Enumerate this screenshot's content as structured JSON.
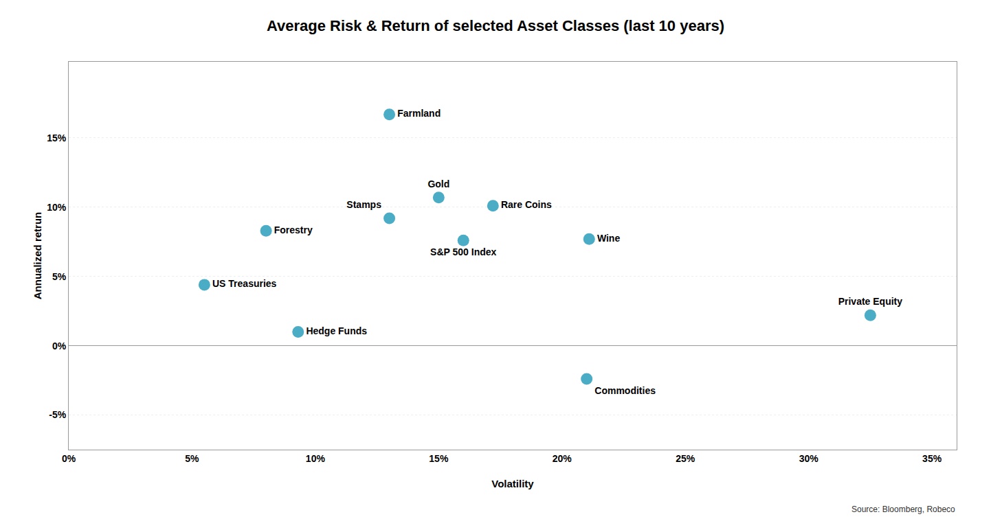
{
  "chart_data": {
    "type": "scatter",
    "title": "Average Risk & Return of selected Asset Classes (last 10 years)",
    "xlabel": "Volatility",
    "ylabel": "Annualized retrun",
    "labels": [
      "Farmland",
      "Forestry",
      "Gold",
      "Stamps",
      "Rare Coins",
      "S&P 500 Index",
      "Wine",
      "US Treasuries",
      "Hedge Funds",
      "Private Equity",
      "Commodities"
    ],
    "x": [
      0.13,
      0.08,
      0.15,
      0.13,
      0.172,
      0.16,
      0.211,
      0.055,
      0.093,
      0.325,
      0.21
    ],
    "values": [
      0.167,
      0.083,
      0.107,
      0.092,
      0.101,
      0.076,
      0.077,
      0.044,
      0.01,
      0.022,
      -0.024
    ],
    "color": "#4BACC6",
    "xlim": [
      0.0,
      0.36
    ],
    "ylim": [
      -0.075,
      0.205
    ],
    "xticks": [
      {
        "value": 0.0,
        "label": "0%"
      },
      {
        "value": 0.05,
        "label": "5%"
      },
      {
        "value": 0.1,
        "label": "10%"
      },
      {
        "value": 0.15,
        "label": "15%"
      },
      {
        "value": 0.2,
        "label": "20%"
      },
      {
        "value": 0.25,
        "label": "25%"
      },
      {
        "value": 0.3,
        "label": "30%"
      },
      {
        "value": 0.35,
        "label": "35%"
      }
    ],
    "yticks": [
      {
        "value": -0.05,
        "label": "-5%"
      },
      {
        "value": 0.0,
        "label": "0%"
      },
      {
        "value": 0.05,
        "label": "5%"
      },
      {
        "value": 0.1,
        "label": "10%"
      },
      {
        "value": 0.15,
        "label": "15%"
      }
    ],
    "grid": true,
    "annotations": [
      "Source: Bloomberg, Robeco"
    ]
  }
}
